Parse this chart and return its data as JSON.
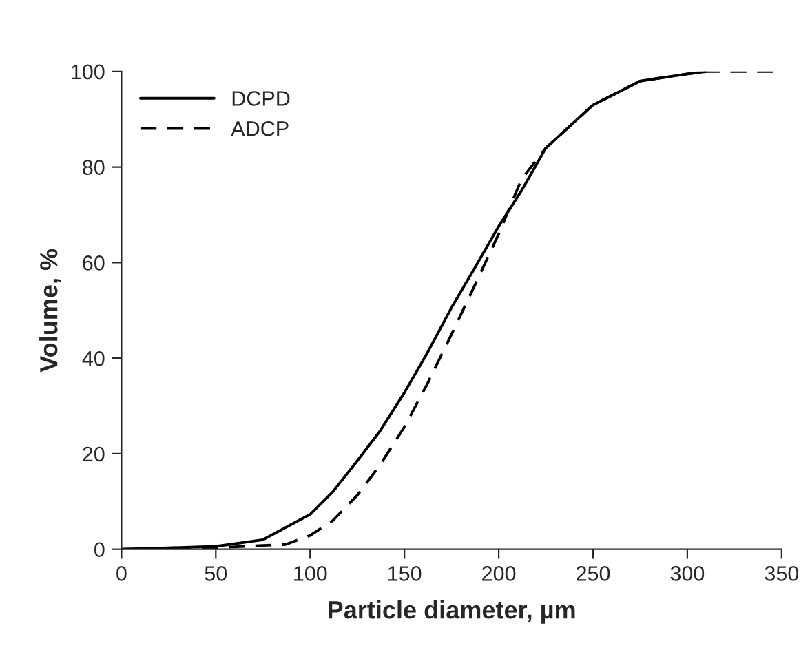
{
  "chart_data": {
    "type": "line",
    "xlabel": "Particle diameter, µm",
    "ylabel": "Volume, %",
    "xlim": [
      0,
      350
    ],
    "xticks": [
      0,
      50,
      100,
      150,
      200,
      250,
      300,
      350
    ],
    "ylim": [
      0,
      100
    ],
    "yticks": [
      0,
      20,
      40,
      60,
      80,
      100
    ],
    "legend": "top left",
    "grid": false,
    "series": [
      {
        "name": "DCPD",
        "color": "#000000",
        "line_style": "solid",
        "x": [
          0,
          25,
          50,
          75,
          100,
          112,
          125,
          137,
          150,
          162,
          175,
          187,
          200,
          212,
          225,
          250,
          275,
          300,
          310
        ],
        "values": [
          0,
          0.3,
          0.6,
          2,
          7.3,
          12,
          18.5,
          24.7,
          32.8,
          41,
          50.6,
          58.7,
          67.6,
          75,
          84,
          93,
          98,
          99.5,
          100
        ]
      },
      {
        "name": "ADCP",
        "color": "#000000",
        "line_style": "dashed",
        "x": [
          0,
          50,
          75,
          87,
          100,
          112,
          125,
          137,
          150,
          162,
          175,
          187,
          200,
          212,
          225,
          250,
          275,
          300,
          310,
          350
        ],
        "values": [
          0,
          0.3,
          0.8,
          1,
          2.9,
          6,
          11.3,
          17.6,
          25.6,
          34.5,
          45,
          55,
          66,
          77.4,
          84,
          93,
          98,
          99.5,
          100,
          100
        ]
      }
    ]
  }
}
